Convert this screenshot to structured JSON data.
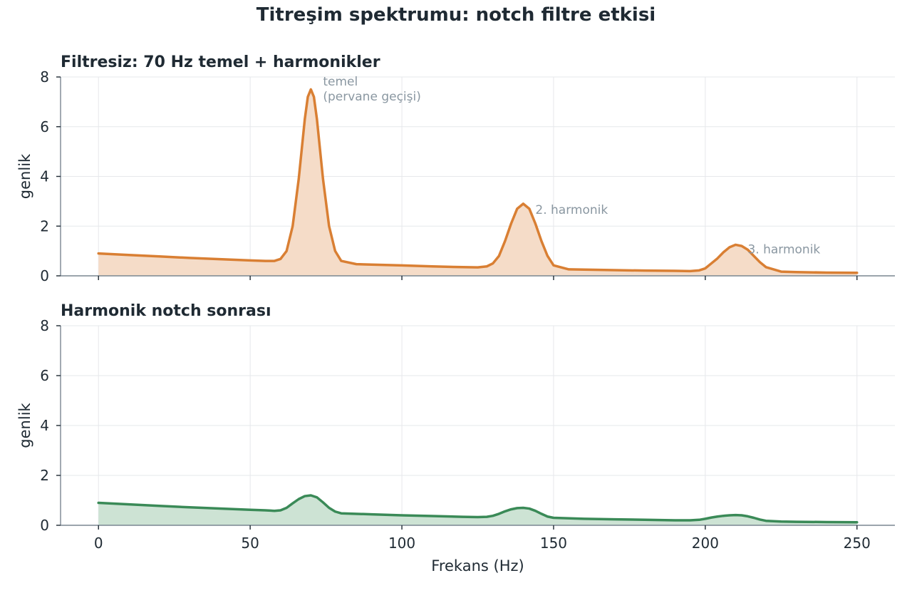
{
  "title": "Titreşim spektrumu: notch filtre etkisi",
  "chart_data": [
    {
      "type": "area",
      "title": "Filtresiz: 70 Hz temel + harmonikler",
      "xlabel": "",
      "ylabel": "genlik",
      "xlim": [
        -12.5,
        262.5
      ],
      "ylim": [
        0,
        8
      ],
      "xticks": [
        0,
        50,
        100,
        150,
        200,
        250
      ],
      "yticks": [
        0,
        2,
        4,
        6,
        8
      ],
      "grid": true,
      "color": "#d97f33",
      "fill": "#f5dcc8",
      "x": [
        0,
        10,
        20,
        30,
        40,
        50,
        55,
        58,
        60,
        62,
        64,
        66,
        68,
        69,
        70,
        71,
        72,
        74,
        76,
        78,
        80,
        85,
        90,
        100,
        110,
        120,
        125,
        128,
        130,
        132,
        134,
        136,
        138,
        140,
        142,
        144,
        146,
        148,
        150,
        155,
        160,
        170,
        180,
        190,
        195,
        198,
        200,
        202,
        204,
        206,
        208,
        210,
        212,
        214,
        216,
        218,
        220,
        225,
        230,
        240,
        250
      ],
      "y": [
        0.9,
        0.84,
        0.78,
        0.72,
        0.67,
        0.62,
        0.6,
        0.6,
        0.68,
        1.0,
        2.0,
        3.9,
        6.3,
        7.2,
        7.5,
        7.2,
        6.3,
        3.9,
        2.0,
        1.0,
        0.6,
        0.47,
        0.45,
        0.42,
        0.38,
        0.35,
        0.34,
        0.38,
        0.5,
        0.8,
        1.4,
        2.1,
        2.7,
        2.9,
        2.7,
        2.1,
        1.4,
        0.8,
        0.42,
        0.26,
        0.25,
        0.23,
        0.21,
        0.2,
        0.19,
        0.22,
        0.3,
        0.5,
        0.7,
        0.95,
        1.15,
        1.25,
        1.2,
        1.05,
        0.8,
        0.55,
        0.35,
        0.17,
        0.15,
        0.13,
        0.12
      ],
      "annotations": [
        {
          "text": "temel",
          "x": 74,
          "y": 7.65
        },
        {
          "text": "(pervane geçişi)",
          "x": 74,
          "y": 7.05
        },
        {
          "text": "2. harmonik",
          "x": 144,
          "y": 2.5
        },
        {
          "text": "3. harmonik",
          "x": 214,
          "y": 0.9
        }
      ]
    },
    {
      "type": "area",
      "title": "Harmonik notch sonrası",
      "xlabel": "Frekans (Hz)",
      "ylabel": "genlik",
      "xlim": [
        -12.5,
        262.5
      ],
      "ylim": [
        0,
        8
      ],
      "xticks": [
        0,
        50,
        100,
        150,
        200,
        250
      ],
      "yticks": [
        0,
        2,
        4,
        6,
        8
      ],
      "grid": true,
      "color": "#3a8a57",
      "fill": "#cde3d4",
      "x": [
        0,
        10,
        20,
        30,
        40,
        50,
        55,
        58,
        60,
        62,
        64,
        66,
        68,
        70,
        72,
        74,
        76,
        78,
        80,
        90,
        100,
        110,
        120,
        125,
        128,
        130,
        132,
        134,
        136,
        138,
        140,
        142,
        144,
        146,
        148,
        150,
        160,
        170,
        180,
        190,
        195,
        198,
        200,
        202,
        204,
        206,
        208,
        210,
        212,
        214,
        216,
        218,
        220,
        225,
        230,
        240,
        250
      ],
      "y": [
        0.9,
        0.84,
        0.78,
        0.72,
        0.67,
        0.62,
        0.6,
        0.58,
        0.6,
        0.7,
        0.88,
        1.05,
        1.17,
        1.2,
        1.12,
        0.92,
        0.7,
        0.55,
        0.48,
        0.44,
        0.4,
        0.37,
        0.34,
        0.33,
        0.34,
        0.38,
        0.46,
        0.56,
        0.64,
        0.69,
        0.7,
        0.67,
        0.58,
        0.46,
        0.35,
        0.3,
        0.26,
        0.24,
        0.22,
        0.2,
        0.2,
        0.22,
        0.26,
        0.31,
        0.35,
        0.38,
        0.4,
        0.41,
        0.4,
        0.36,
        0.3,
        0.23,
        0.18,
        0.15,
        0.14,
        0.13,
        0.12
      ],
      "annotations": []
    }
  ]
}
